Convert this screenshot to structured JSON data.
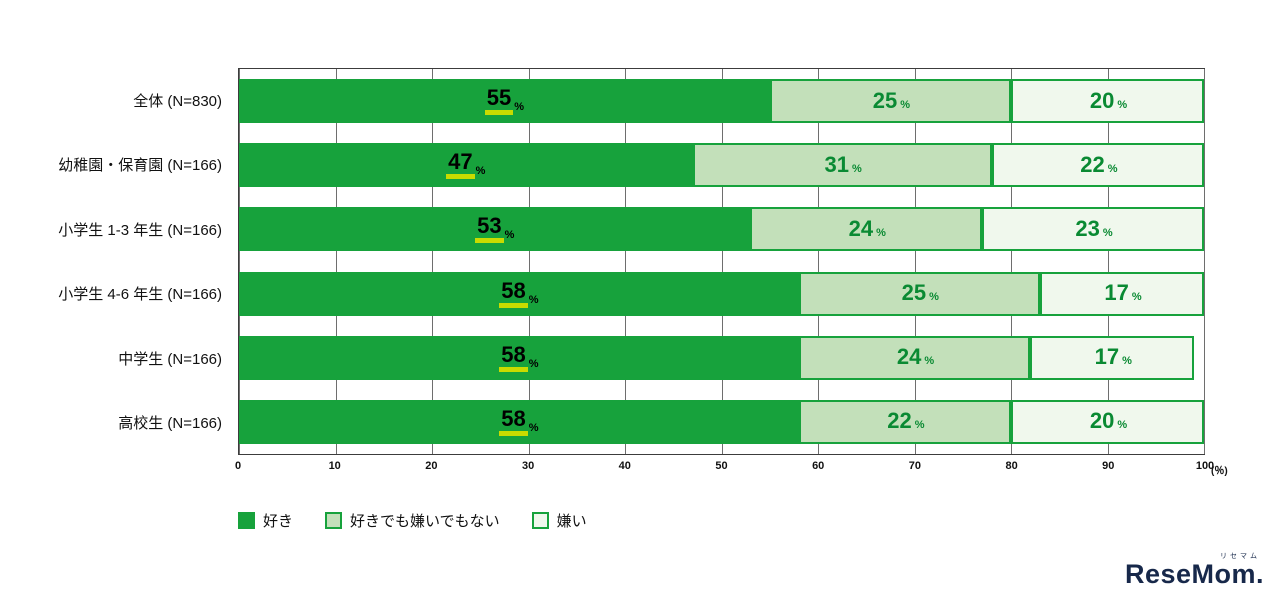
{
  "chart_data": {
    "type": "bar",
    "stacked": true,
    "orientation": "horizontal",
    "categories": [
      "全体 (N=830)",
      "幼稚園・保育園 (N=166)",
      "小学生 1-3 年生 (N=166)",
      "小学生 4-6 年生 (N=166)",
      "中学生 (N=166)",
      "高校生 (N=166)"
    ],
    "series": [
      {
        "name": "好き",
        "color": "#17a23c",
        "label_color": "#000000",
        "underline": true,
        "underline_color": "#c9db00",
        "values": [
          55,
          47,
          53,
          58,
          58,
          58
        ]
      },
      {
        "name": "好きでも嫌いでもない",
        "color": "#c3e0ba",
        "label_color": "#0a8a33",
        "underline": false,
        "values": [
          25,
          31,
          24,
          25,
          24,
          22
        ]
      },
      {
        "name": "嫌い",
        "color": "#f0f8ed",
        "label_color": "#0a8a33",
        "underline": false,
        "values": [
          20,
          22,
          23,
          17,
          17,
          20
        ]
      }
    ],
    "x_ticks": [
      "0",
      "10",
      "20",
      "30",
      "40",
      "50",
      "60",
      "70",
      "80",
      "90",
      "100"
    ],
    "x_unit": "(％)",
    "xlim": [
      0,
      100
    ],
    "value_suffix": "%",
    "border_color": "#17a23c",
    "grid_color": "#6e6e6e",
    "legend_position": "bottom-left",
    "grid": true
  },
  "logo": {
    "ruby": "リセマム",
    "text": "ReseMom."
  }
}
